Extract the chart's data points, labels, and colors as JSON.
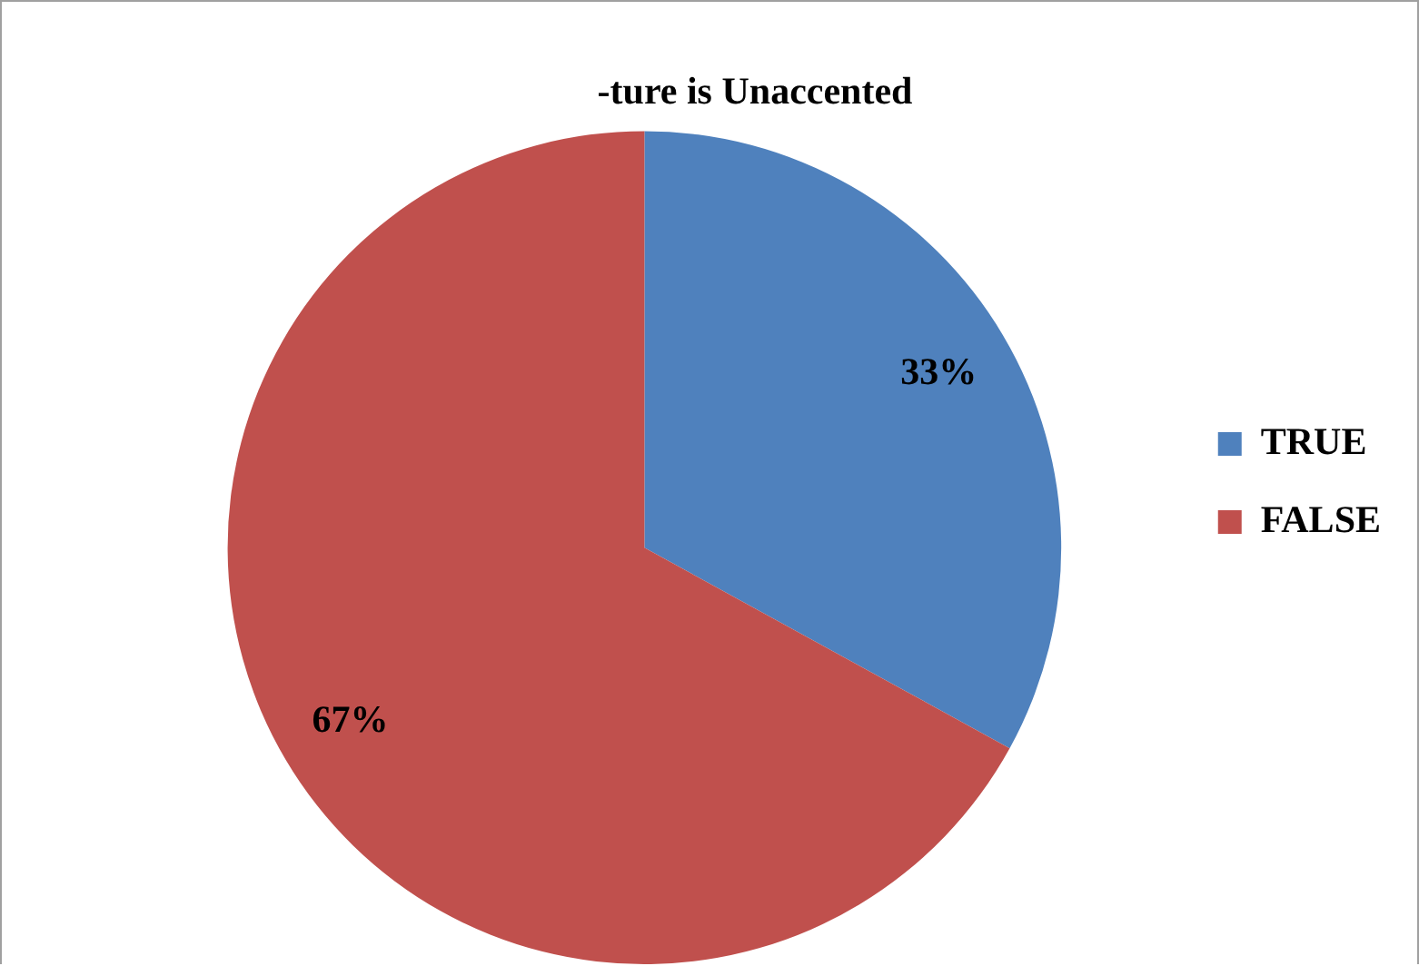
{
  "chart_data": {
    "type": "pie",
    "title": "-ture is Unaccented",
    "categories": [
      "TRUE",
      "FALSE"
    ],
    "values": [
      33,
      67
    ],
    "colors": [
      "#4f81bd",
      "#c0504d"
    ],
    "value_labels": [
      "33%",
      "67%"
    ],
    "legend": "right"
  }
}
